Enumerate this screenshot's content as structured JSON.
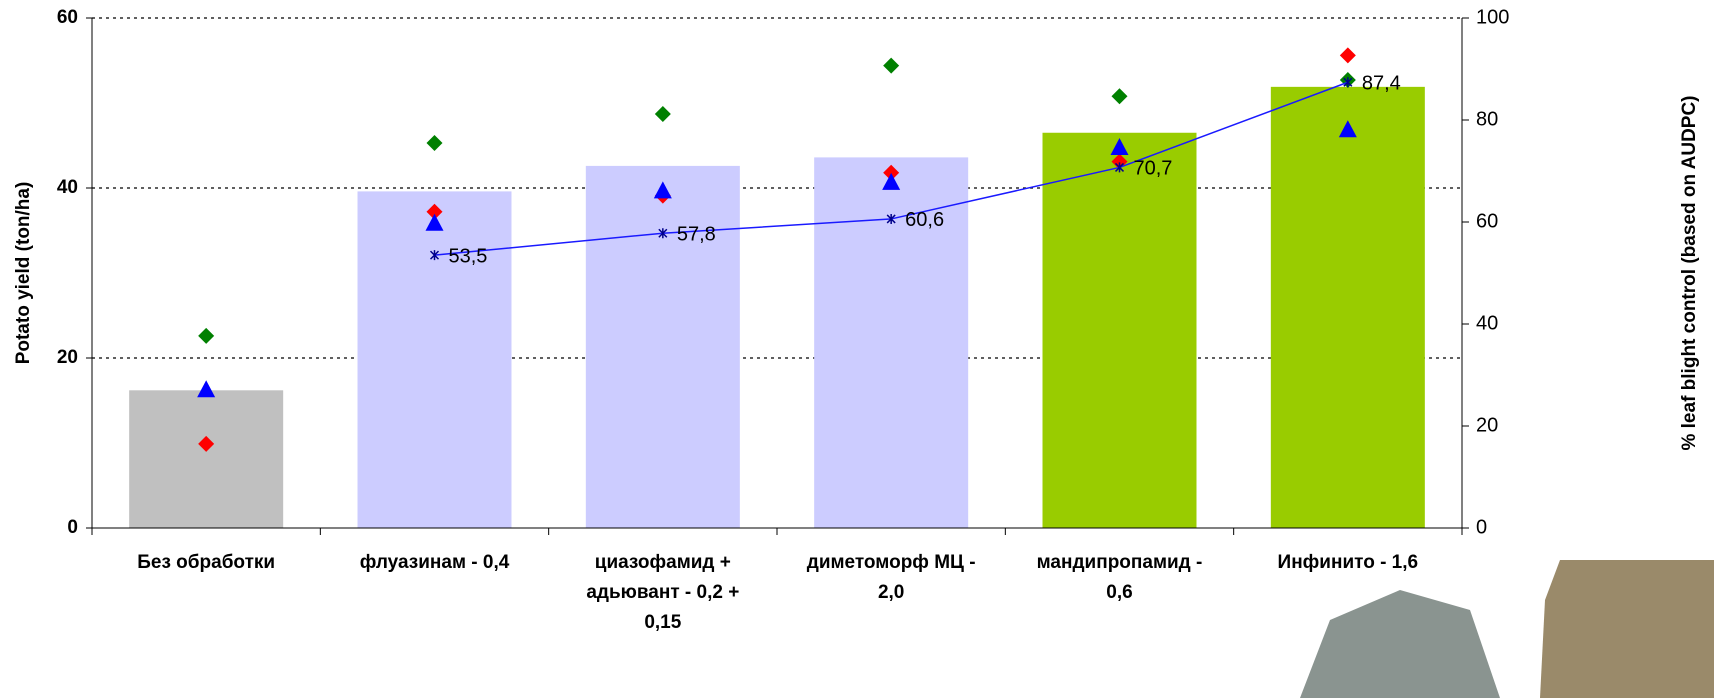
{
  "chart_data": {
    "type": "bar",
    "ylabel": "Potato yield (ton/ha)",
    "y2label": "% leaf blight control (based on AUDPC)",
    "categories": [
      "Без обработки",
      "флуазинам  - 0,4",
      "циазофамид + адьювант - 0,2 + 0,15",
      "диметоморф МЦ - 2,0",
      "мандипропамид - 0,6",
      "Инфинито - 1,6"
    ],
    "ylim": [
      0,
      60
    ],
    "yticks": [
      0,
      20,
      40,
      60
    ],
    "y2lim": [
      0,
      100
    ],
    "y2ticks": [
      0,
      20,
      40,
      60,
      80,
      100
    ],
    "grid": true,
    "series": [
      {
        "type": "bar",
        "colors": [
          "#c0c0c0",
          "#ccccff",
          "#ccccff",
          "#ccccff",
          "#99cc00",
          "#99cc00"
        ],
        "values": [
          16.2,
          39.6,
          42.6,
          43.6,
          46.5,
          51.9
        ]
      },
      {
        "type": "scatter",
        "marker": "diamond",
        "color": "#008000",
        "values": [
          22.6,
          45.3,
          48.7,
          54.4,
          50.8,
          52.7
        ]
      },
      {
        "type": "scatter",
        "marker": "diamond",
        "color": "#ff0000",
        "values": [
          9.9,
          37.2,
          39.1,
          41.8,
          43.1,
          55.6
        ]
      },
      {
        "type": "scatter",
        "marker": "triangle",
        "color": "#0000ff",
        "values": [
          16.2,
          35.8,
          39.6,
          40.6,
          44.7,
          46.8
        ]
      },
      {
        "type": "line",
        "axis": "y2",
        "color": "#1a1aff",
        "values": [
          null,
          53.5,
          57.8,
          60.6,
          70.7,
          87.4
        ],
        "value_labels": [
          null,
          "53,5",
          "57,8",
          "60,6",
          "70,7",
          "87,4"
        ]
      }
    ]
  }
}
